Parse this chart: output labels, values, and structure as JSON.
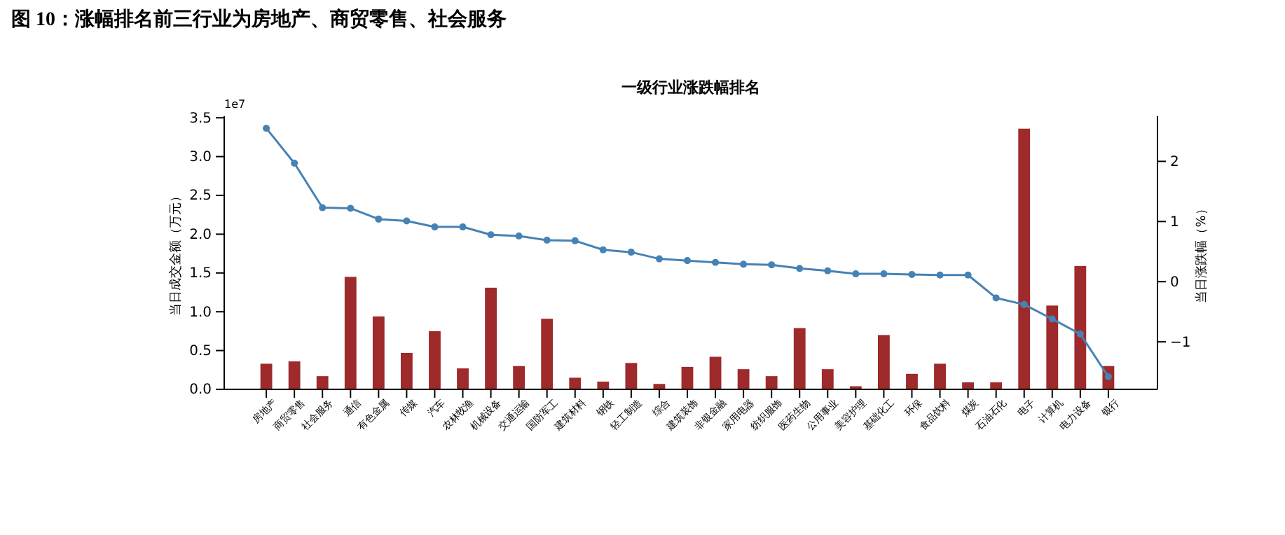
{
  "chart_data": {
    "type": "bar",
    "title": "图 10：涨幅排名前三行业为房地产、商贸零售、社会服务",
    "subtitle": "一级行业涨跌幅排名",
    "ylabel": "当日成交金额（万元）",
    "y2label": "当日涨跌幅（%）",
    "annotations": [
      "1e7"
    ],
    "categories": [
      "房地产",
      "商贸零售",
      "社会服务",
      "通信",
      "有色金属",
      "传媒",
      "汽车",
      "农林牧渔",
      "机械设备",
      "交通运输",
      "国防军工",
      "建筑材料",
      "钢铁",
      "轻工制造",
      "综合",
      "建筑装饰",
      "非银金融",
      "家用电器",
      "纺织服饰",
      "医药生物",
      "公用事业",
      "美容护理",
      "基础化工",
      "环保",
      "食品饮料",
      "煤炭",
      "石油石化",
      "电子",
      "计算机",
      "电力设备",
      "银行"
    ],
    "series": [
      {
        "color": "#9e2a2b",
        "values": [
          0.33,
          0.36,
          0.17,
          1.45,
          0.94,
          0.47,
          0.75,
          0.27,
          1.31,
          0.3,
          0.91,
          0.15,
          0.1,
          0.34,
          0.07,
          0.29,
          0.42,
          0.26,
          0.17,
          0.79,
          0.26,
          0.04,
          0.7,
          0.2,
          0.33,
          0.09,
          0.09,
          3.36,
          1.08,
          1.59,
          0.3
        ]
      },
      {
        "type": "line",
        "axis": "y2",
        "color": "#4682b4",
        "marker": "circle",
        "values": [
          2.55,
          1.97,
          1.23,
          1.22,
          1.04,
          1.01,
          0.91,
          0.91,
          0.78,
          0.76,
          0.69,
          0.68,
          0.53,
          0.49,
          0.38,
          0.35,
          0.32,
          0.29,
          0.28,
          0.22,
          0.18,
          0.13,
          0.13,
          0.12,
          0.11,
          0.11,
          -0.27,
          -0.38,
          -0.62,
          -0.87,
          -1.58
        ]
      }
    ],
    "ylim": [
      0,
      3.52
    ],
    "yticks": [
      {
        "value": 0,
        "label": "0.0"
      },
      0.5,
      {
        "value": 1,
        "label": "1.0"
      },
      1.5,
      {
        "value": 2,
        "label": "2.0"
      },
      2.5,
      {
        "value": 3,
        "label": "3.0"
      },
      3.5
    ],
    "y2lim": [
      -1.79,
      2.75
    ],
    "y2ticks": [
      {
        "value": -1,
        "label": "−1"
      },
      0,
      1,
      2
    ],
    "grid": false
  }
}
